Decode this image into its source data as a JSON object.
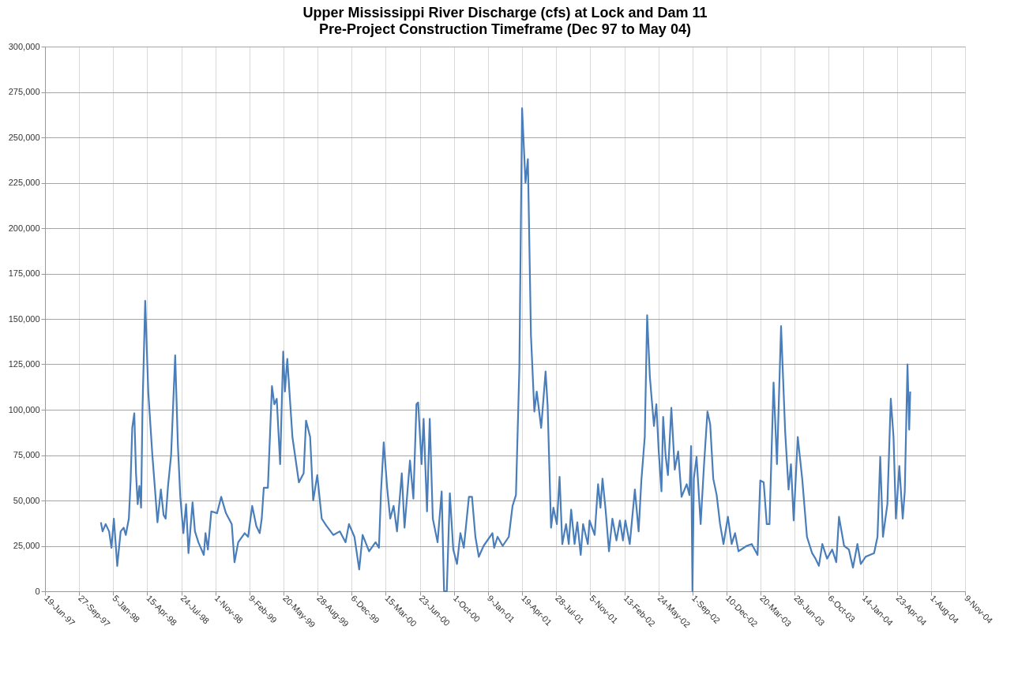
{
  "chart_data": {
    "type": "line",
    "title": "Upper Mississippi River Discharge (cfs) at Lock and Dam 11",
    "subtitle": "Pre-Project Construction Timeframe (Dec 97 to May 04)",
    "x": [
      "1997-11-30",
      "1997-12-05",
      "1997-12-14",
      "1997-12-24",
      "1997-12-31",
      "1998-01-07",
      "1998-01-17",
      "1998-01-27",
      "1998-02-05",
      "1998-02-11",
      "1998-02-20",
      "1998-02-25",
      "1998-03-02",
      "1998-03-08",
      "1998-03-13",
      "1998-03-18",
      "1998-03-23",
      "1998-03-28",
      "1998-04-01",
      "1998-04-09",
      "1998-04-18",
      "1998-04-30",
      "1998-05-07",
      "1998-05-15",
      "1998-05-25",
      "1998-06-02",
      "1998-06-08",
      "1998-06-15",
      "1998-06-24",
      "1998-07-06",
      "1998-07-14",
      "1998-07-21",
      "1998-07-30",
      "1998-08-07",
      "1998-08-14",
      "1998-08-26",
      "1998-09-02",
      "1998-09-12",
      "1998-09-28",
      "1998-10-03",
      "1998-10-10",
      "1998-10-20",
      "1998-11-06",
      "1998-11-18",
      "1998-12-02",
      "1998-12-19",
      "1998-12-27",
      "1999-01-07",
      "1999-01-26",
      "1999-02-05",
      "1999-02-17",
      "1999-03-01",
      "1999-03-11",
      "1999-03-17",
      "1999-03-23",
      "1999-04-04",
      "1999-04-16",
      "1999-04-23",
      "1999-04-30",
      "1999-05-10",
      "1999-05-19",
      "1999-05-24",
      "1999-05-31",
      "1999-06-15",
      "1999-07-04",
      "1999-07-18",
      "1999-07-25",
      "1999-08-06",
      "1999-08-15",
      "1999-08-27",
      "1999-09-09",
      "1999-09-23",
      "1999-10-13",
      "1999-11-01",
      "1999-11-18",
      "1999-11-28",
      "1999-12-14",
      "1999-12-28",
      "2000-01-07",
      "2000-01-26",
      "2000-02-14",
      "2000-02-24",
      "2000-03-01",
      "2000-03-09",
      "2000-03-19",
      "2000-03-28",
      "2000-04-07",
      "2000-04-17",
      "2000-05-01",
      "2000-05-09",
      "2000-05-25",
      "2000-06-04",
      "2000-06-13",
      "2000-06-18",
      "2000-06-28",
      "2000-07-04",
      "2000-07-14",
      "2000-07-22",
      "2000-07-31",
      "2000-08-14",
      "2000-08-26",
      "2000-09-02",
      "2000-09-10",
      "2000-09-19",
      "2000-09-29",
      "2000-10-10",
      "2000-10-20",
      "2000-10-30",
      "2000-11-14",
      "2000-11-23",
      "2000-12-03",
      "2000-12-13",
      "2000-12-27",
      "2001-01-22",
      "2001-01-27",
      "2001-02-06",
      "2001-02-21",
      "2001-03-11",
      "2001-03-22",
      "2001-04-01",
      "2001-04-11",
      "2001-04-19",
      "2001-04-29",
      "2001-05-06",
      "2001-05-15",
      "2001-05-25",
      "2001-06-01",
      "2001-06-14",
      "2001-06-27",
      "2001-07-03",
      "2001-07-13",
      "2001-07-20",
      "2001-07-30",
      "2001-08-07",
      "2001-08-15",
      "2001-08-26",
      "2001-09-03",
      "2001-09-10",
      "2001-09-20",
      "2001-09-28",
      "2001-10-08",
      "2001-10-15",
      "2001-10-29",
      "2001-11-03",
      "2001-11-18",
      "2001-11-28",
      "2001-12-05",
      "2001-12-11",
      "2001-12-20",
      "2001-12-30",
      "2002-01-09",
      "2002-01-21",
      "2002-01-31",
      "2002-02-09",
      "2002-02-16",
      "2002-03-01",
      "2002-03-16",
      "2002-03-27",
      "2002-04-04",
      "2002-04-14",
      "2002-04-21",
      "2002-04-29",
      "2002-05-11",
      "2002-05-18",
      "2002-05-25",
      "2002-06-02",
      "2002-06-07",
      "2002-06-14",
      "2002-06-21",
      "2002-07-01",
      "2002-07-11",
      "2002-07-21",
      "2002-07-31",
      "2002-08-15",
      "2002-08-23",
      "2002-08-28",
      "2002-09-01",
      "2002-09-05",
      "2002-09-13",
      "2002-09-25",
      "2002-10-05",
      "2002-10-15",
      "2002-10-23",
      "2002-11-01",
      "2002-11-11",
      "2002-11-21",
      "2002-12-01",
      "2002-12-14",
      "2002-12-25",
      "2003-01-04",
      "2003-01-14",
      "2003-02-07",
      "2003-02-22",
      "2003-03-11",
      "2003-03-19",
      "2003-03-29",
      "2003-04-07",
      "2003-04-15",
      "2003-04-27",
      "2003-05-07",
      "2003-05-19",
      "2003-05-31",
      "2003-06-10",
      "2003-06-17",
      "2003-06-25",
      "2003-07-07",
      "2003-07-20",
      "2003-08-03",
      "2003-08-18",
      "2003-08-28",
      "2003-09-07",
      "2003-09-17",
      "2003-10-01",
      "2003-10-16",
      "2003-10-28",
      "2003-11-05",
      "2003-11-20",
      "2003-12-04",
      "2003-12-16",
      "2003-12-29",
      "2004-01-08",
      "2004-01-22",
      "2004-02-16",
      "2004-02-26",
      "2004-03-05",
      "2004-03-13",
      "2004-03-26",
      "2004-04-05",
      "2004-04-13",
      "2004-04-20",
      "2004-04-30",
      "2004-05-10",
      "2004-05-16",
      "2004-05-24",
      "2004-05-29",
      "2004-06-01"
    ],
    "series": [
      {
        "color": "#4a7ebb",
        "values": [
          38000,
          33000,
          37000,
          33000,
          24000,
          40000,
          14000,
          33000,
          35000,
          31000,
          40000,
          60000,
          90000,
          98000,
          65000,
          48000,
          58000,
          46000,
          100000,
          160000,
          110000,
          75000,
          58000,
          38000,
          56000,
          42000,
          40000,
          58000,
          75000,
          130000,
          80000,
          52000,
          32000,
          48000,
          21000,
          49000,
          33000,
          27000,
          20000,
          32000,
          23000,
          44000,
          43000,
          52000,
          43000,
          37000,
          16000,
          27000,
          32000,
          30000,
          47000,
          36000,
          32000,
          40000,
          57000,
          57000,
          113000,
          103000,
          106000,
          70000,
          132000,
          110000,
          128000,
          85000,
          60000,
          65000,
          94000,
          85000,
          50000,
          64000,
          40000,
          36000,
          31000,
          33000,
          27000,
          37000,
          30000,
          12000,
          31000,
          22000,
          27000,
          24000,
          55000,
          82000,
          57000,
          40000,
          47000,
          33000,
          65000,
          35000,
          72000,
          51000,
          103000,
          104000,
          70000,
          95000,
          44000,
          95000,
          40000,
          27000,
          55000,
          0,
          0,
          54000,
          23000,
          15000,
          32000,
          24000,
          52000,
          52000,
          30000,
          19000,
          25000,
          32000,
          24000,
          30000,
          25000,
          30000,
          47000,
          53000,
          123000,
          266000,
          225000,
          238000,
          141000,
          99000,
          110000,
          90000,
          121000,
          102000,
          35000,
          46000,
          37000,
          63000,
          26000,
          37000,
          26000,
          45000,
          26000,
          38000,
          20000,
          37000,
          26000,
          39000,
          31000,
          59000,
          46000,
          62000,
          45000,
          22000,
          40000,
          28000,
          39000,
          28000,
          39000,
          26000,
          56000,
          33000,
          61000,
          85000,
          152000,
          118000,
          91000,
          103000,
          77000,
          55000,
          96000,
          75000,
          64000,
          101000,
          67000,
          77000,
          52000,
          59000,
          53000,
          80000,
          0,
          62000,
          74000,
          37000,
          70000,
          99000,
          92000,
          62000,
          53000,
          37000,
          26000,
          41000,
          26000,
          32000,
          22000,
          25000,
          26000,
          20000,
          61000,
          60000,
          37000,
          37000,
          115000,
          70000,
          146000,
          88000,
          56000,
          70000,
          39000,
          85000,
          62000,
          30000,
          21000,
          18000,
          14000,
          26000,
          18000,
          23000,
          16000,
          41000,
          25000,
          23000,
          13000,
          26000,
          15000,
          19000,
          21000,
          30000,
          74000,
          30000,
          48000,
          106000,
          85000,
          40000,
          69000,
          40000,
          55000,
          125000,
          89000,
          110000
        ]
      }
    ],
    "xlim": [
      "1997-06-19",
      "2004-11-09"
    ],
    "xticks": [
      {
        "value": "1997-06-19",
        "label": "19-Jun-97"
      },
      {
        "value": "1997-09-27",
        "label": "27-Sep-97"
      },
      {
        "value": "1998-01-05",
        "label": "5-Jan-98"
      },
      {
        "value": "1998-04-15",
        "label": "15-Apr-98"
      },
      {
        "value": "1998-07-24",
        "label": "24-Jul-98"
      },
      {
        "value": "1998-11-01",
        "label": "1-Nov-98"
      },
      {
        "value": "1999-02-09",
        "label": "9-Feb-99"
      },
      {
        "value": "1999-05-20",
        "label": "20-May-99"
      },
      {
        "value": "1999-08-28",
        "label": "28-Aug-99"
      },
      {
        "value": "1999-12-06",
        "label": "6-Dec-99"
      },
      {
        "value": "2000-03-15",
        "label": "15-Mar-00"
      },
      {
        "value": "2000-06-23",
        "label": "23-Jun-00"
      },
      {
        "value": "2000-10-01",
        "label": "1-Oct-00"
      },
      {
        "value": "2001-01-09",
        "label": "9-Jan-01"
      },
      {
        "value": "2001-04-19",
        "label": "19-Apr-01"
      },
      {
        "value": "2001-07-28",
        "label": "28-Jul-01"
      },
      {
        "value": "2001-11-05",
        "label": "5-Nov-01"
      },
      {
        "value": "2002-02-13",
        "label": "13-Feb-02"
      },
      {
        "value": "2002-05-24",
        "label": "24-May-02"
      },
      {
        "value": "2002-09-01",
        "label": "1-Sep-02"
      },
      {
        "value": "2002-12-10",
        "label": "10-Dec-02"
      },
      {
        "value": "2003-03-20",
        "label": "20-Mar-03"
      },
      {
        "value": "2003-06-28",
        "label": "28-Jun-03"
      },
      {
        "value": "2003-10-06",
        "label": "6-Oct-03"
      },
      {
        "value": "2004-01-14",
        "label": "14-Jan-04"
      },
      {
        "value": "2004-04-23",
        "label": "23-Apr-04"
      },
      {
        "value": "2004-08-01",
        "label": "1-Aug-04"
      },
      {
        "value": "2004-11-09",
        "label": "9-Nov-04"
      }
    ],
    "ylim": [
      0,
      300000
    ],
    "yticks": [
      {
        "value": 0,
        "label": "0"
      },
      {
        "value": 25000,
        "label": "25,000"
      },
      {
        "value": 50000,
        "label": "50,000"
      },
      {
        "value": 75000,
        "label": "75,000"
      },
      {
        "value": 100000,
        "label": "100,000"
      },
      {
        "value": 125000,
        "label": "125,000"
      },
      {
        "value": 150000,
        "label": "150,000"
      },
      {
        "value": 175000,
        "label": "175,000"
      },
      {
        "value": 200000,
        "label": "200,000"
      },
      {
        "value": 225000,
        "label": "225,000"
      },
      {
        "value": 250000,
        "label": "250,000"
      },
      {
        "value": 275000,
        "label": "275,000"
      },
      {
        "value": 300000,
        "label": "300,000"
      }
    ],
    "grid": true,
    "marker": "none",
    "line_style": "solid"
  }
}
